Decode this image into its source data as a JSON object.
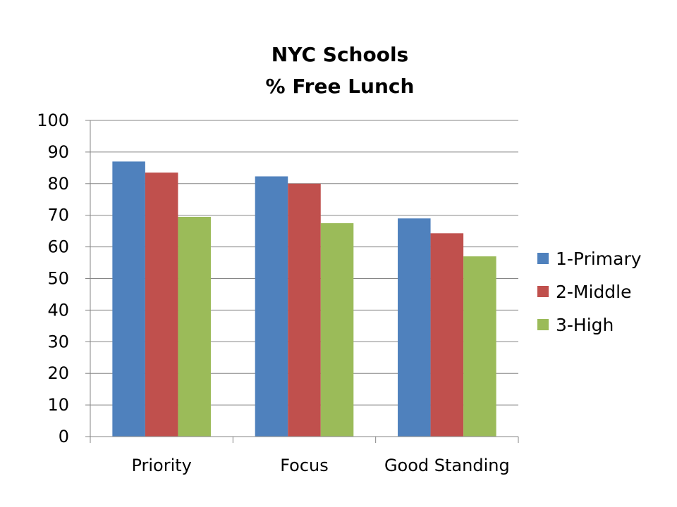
{
  "chart_data": {
    "type": "bar",
    "title_lines": [
      "NYC Schools",
      "% Free Lunch"
    ],
    "categories": [
      "Priority",
      "Focus",
      "Good Standing"
    ],
    "series": [
      {
        "name": "1-Primary",
        "values": [
          87,
          82.3,
          69
        ],
        "color": "#4f81bd"
      },
      {
        "name": "2-Middle",
        "values": [
          83.5,
          80,
          64.3
        ],
        "color": "#c0504d"
      },
      {
        "name": "3-High",
        "values": [
          69.5,
          67.5,
          57
        ],
        "color": "#9bbb59"
      }
    ],
    "yticks": [
      0,
      10,
      20,
      30,
      40,
      50,
      60,
      70,
      80,
      90,
      100
    ],
    "ylim": [
      0,
      100
    ],
    "grid": true,
    "legend_position": "right"
  }
}
